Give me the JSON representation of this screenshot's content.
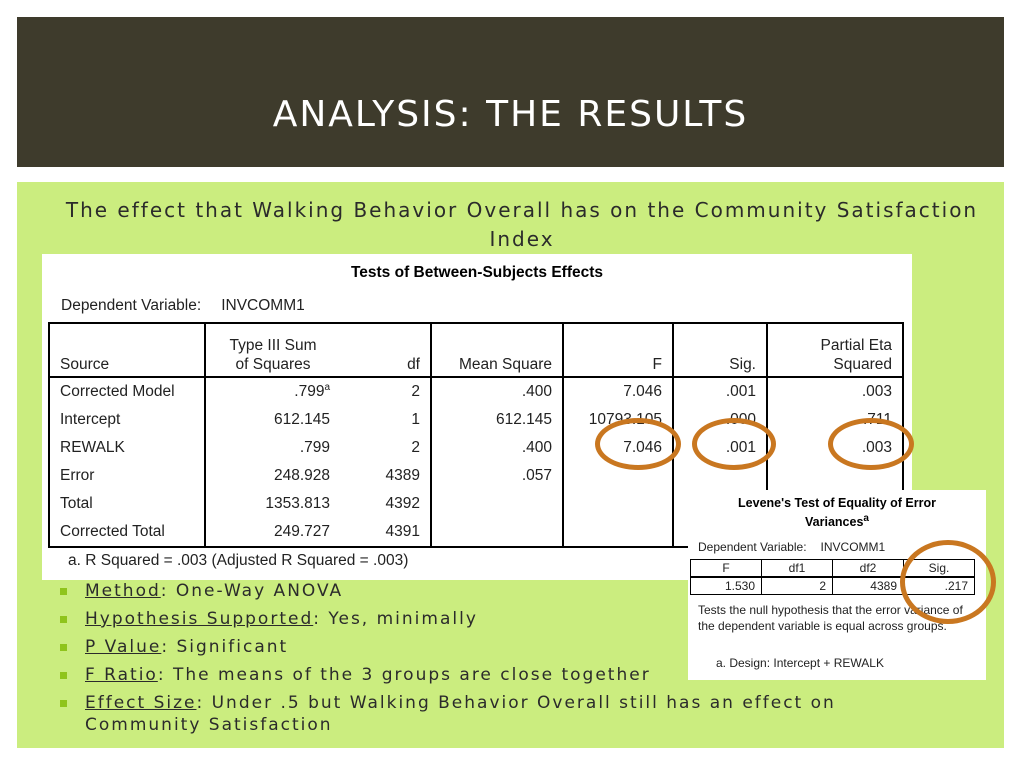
{
  "slide": {
    "title": "ANALYSIS: THE RESULTS",
    "subtitle": "The effect that Walking Behavior Overall has on the Community Satisfaction Index"
  },
  "spss_table": {
    "title": "Tests of Between-Subjects Effects",
    "dv_label": "Dependent Variable:",
    "dv_value": "INVCOMM1",
    "headers": {
      "source": "Source",
      "ss_line1": "Type III Sum",
      "ss_line2": "of Squares",
      "df": "df",
      "ms": "Mean Square",
      "f": "F",
      "sig": "Sig.",
      "eta_line1": "Partial Eta",
      "eta_line2": "Squared"
    },
    "rows": [
      {
        "source": "Corrected Model",
        "ss": ".799",
        "ss_sup": "a",
        "df": "2",
        "ms": ".400",
        "f": "7.046",
        "sig": ".001",
        "eta": ".003"
      },
      {
        "source": "Intercept",
        "ss": "612.145",
        "ss_sup": "",
        "df": "1",
        "ms": "612.145",
        "f": "10793.105",
        "sig": ".000",
        "eta": ".711"
      },
      {
        "source": "REWALK",
        "ss": ".799",
        "ss_sup": "",
        "df": "2",
        "ms": ".400",
        "f": "7.046",
        "sig": ".001",
        "eta": ".003"
      },
      {
        "source": "Error",
        "ss": "248.928",
        "ss_sup": "",
        "df": "4389",
        "ms": ".057",
        "f": "",
        "sig": "",
        "eta": ""
      },
      {
        "source": "Total",
        "ss": "1353.813",
        "ss_sup": "",
        "df": "4392",
        "ms": "",
        "f": "",
        "sig": "",
        "eta": ""
      },
      {
        "source": "Corrected Total",
        "ss": "249.727",
        "ss_sup": "",
        "df": "4391",
        "ms": "",
        "f": "",
        "sig": "",
        "eta": ""
      }
    ],
    "footnote": "a. R Squared = .003 (Adjusted R Squared = .003)"
  },
  "levene": {
    "title_line1": "Levene's Test of Equality of Error",
    "title_line2": "Variances",
    "title_sup": "a",
    "dv_label": "Dependent Variable:",
    "dv_value": "INVCOMM1",
    "headers": [
      "F",
      "df1",
      "df2",
      "Sig."
    ],
    "values": [
      "1.530",
      "2",
      "4389",
      ".217"
    ],
    "note": "Tests the null hypothesis that the error variance of the dependent variable is equal across groups.",
    "design": "a. Design: Intercept + REWALK"
  },
  "bullets": [
    {
      "key": "Method",
      "text": ": One-Way ANOVA"
    },
    {
      "key": "Hypothesis Supported",
      "text": ": Yes, minimally"
    },
    {
      "key": "P Value",
      "text": ": Significant"
    },
    {
      "key": "F Ratio",
      "text": ": The means of the 3 groups are close together"
    },
    {
      "key": "Effect Size",
      "text": ": Under .5 but Walking Behavior Overall still has an effect on Community Satisfaction"
    }
  ],
  "colors": {
    "header_bg": "#3e3b2c",
    "content_bg": "#cbed7f",
    "highlight_ring": "#c97720",
    "bullet": "#8fc41c"
  }
}
